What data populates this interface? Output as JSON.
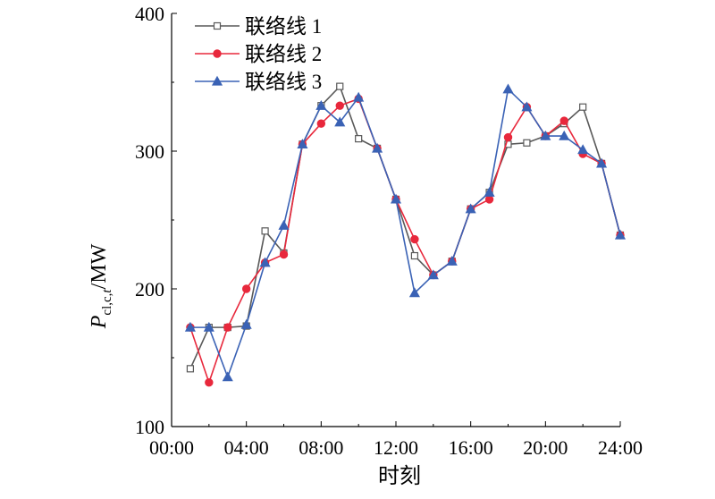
{
  "chart_data": {
    "type": "line",
    "xlabel": "时刻",
    "ylabel": {
      "main": "P",
      "sub": "cl,c,",
      "sub_italic": "t",
      "unit": "/MW"
    },
    "xlim": [
      0,
      24
    ],
    "ylim": [
      100,
      400
    ],
    "x_ticks": [
      "00:00",
      "04:00",
      "08:00",
      "12:00",
      "16:00",
      "20:00",
      "24:00"
    ],
    "y_ticks": [
      "100",
      "200",
      "300",
      "400"
    ],
    "legend_position": "top-left",
    "grid": false,
    "x": [
      1,
      2,
      3,
      4,
      5,
      6,
      7,
      8,
      9,
      10,
      11,
      12,
      13,
      14,
      15,
      16,
      17,
      18,
      19,
      20,
      21,
      22,
      23,
      24
    ],
    "series": [
      {
        "name": "联络线 1",
        "color": "#595959",
        "marker": "open-square",
        "values": [
          142,
          172,
          172,
          173,
          242,
          226,
          305,
          333,
          347,
          309,
          302,
          265,
          224,
          210,
          220,
          258,
          270,
          305,
          306,
          311,
          320,
          332,
          291,
          239
        ]
      },
      {
        "name": "联络线 2",
        "color": "#e8283c",
        "marker": "filled-circle",
        "values": [
          172,
          132,
          172,
          200,
          219,
          225,
          305,
          320,
          333,
          338,
          302,
          265,
          236,
          210,
          220,
          258,
          265,
          310,
          332,
          311,
          322,
          298,
          291,
          239
        ]
      },
      {
        "name": "联络线 3",
        "color": "#3a62b5",
        "marker": "filled-triangle",
        "values": [
          172,
          172,
          136,
          174,
          219,
          246,
          305,
          333,
          321,
          339,
          302,
          265,
          197,
          210,
          220,
          258,
          270,
          345,
          332,
          311,
          311,
          301,
          291,
          239
        ]
      }
    ]
  }
}
